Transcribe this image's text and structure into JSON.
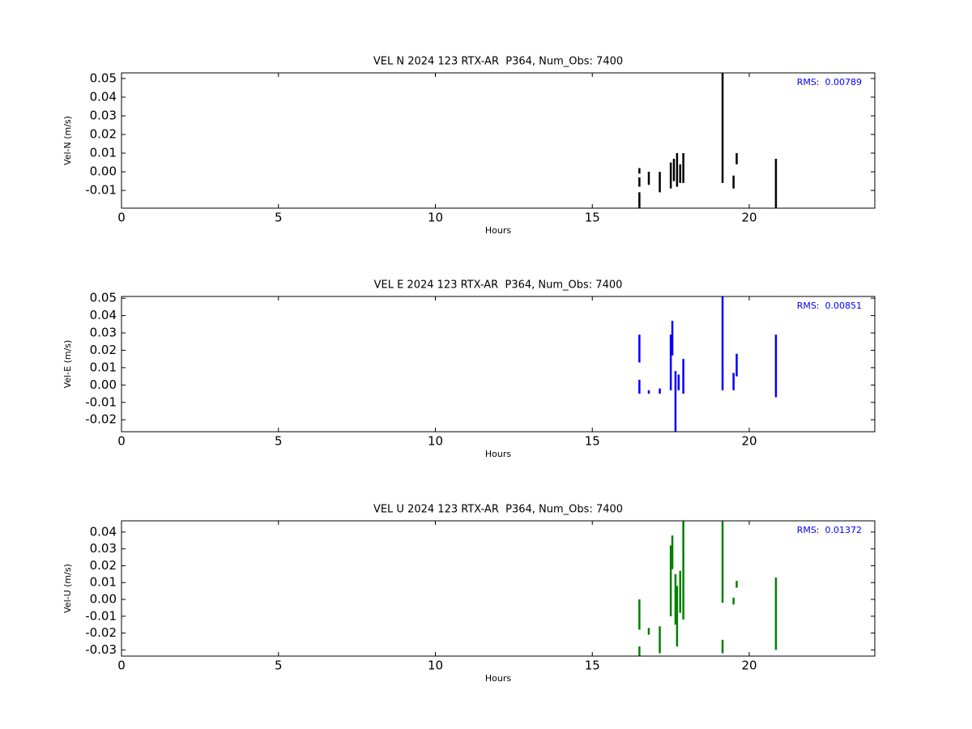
{
  "chart_data": [
    {
      "type": "line",
      "title": "VEL N 2024 123 RTX-AR  P364, Num_Obs: 7400",
      "xlabel": "Hours",
      "ylabel": "Vel-N (m/s)",
      "annotation": "RMS:  0.00789",
      "color": "#000000",
      "x": [
        16.5,
        16.5,
        null,
        16.5,
        16.5,
        null,
        16.5,
        16.5,
        null,
        16.8,
        16.8,
        null,
        17.15,
        17.15,
        null,
        17.5,
        17.5,
        null,
        17.6,
        17.6,
        null,
        17.7,
        17.7,
        null,
        17.8,
        17.8,
        null,
        17.9,
        17.9,
        null,
        19.15,
        19.15,
        null,
        19.5,
        19.5,
        null,
        19.6,
        19.6,
        null,
        20.85,
        20.85
      ],
      "values": [
        -0.0195,
        -0.011,
        null,
        -0.008,
        -0.003,
        null,
        -0.001,
        0.002,
        null,
        -0.007,
        0.0,
        null,
        -0.011,
        0.0,
        null,
        -0.009,
        0.005,
        null,
        -0.005,
        0.007,
        null,
        -0.008,
        0.01,
        null,
        -0.006,
        0.004,
        null,
        -0.006,
        0.01,
        null,
        -0.006,
        0.053,
        null,
        -0.009,
        -0.002,
        null,
        0.004,
        0.01,
        null,
        -0.0195,
        0.007
      ],
      "xlim": [
        0,
        24
      ],
      "xticks": [
        0,
        5,
        10,
        15,
        20
      ],
      "ylim": [
        -0.0195,
        0.053
      ],
      "yticks": [
        -0.01,
        {
          "value": 0,
          "label": "0.00"
        },
        0.01,
        0.02,
        0.03,
        0.04,
        0.05
      ]
    },
    {
      "type": "line",
      "title": "VEL E 2024 123 RTX-AR  P364, Num_Obs: 7400",
      "xlabel": "Hours",
      "ylabel": "Vel-E (m/s)",
      "annotation": "RMS:  0.00851",
      "color": "#0000ff",
      "x": [
        16.5,
        16.5,
        null,
        16.5,
        16.5,
        null,
        16.8,
        16.8,
        null,
        17.15,
        17.15,
        null,
        17.5,
        17.5,
        null,
        17.55,
        17.55,
        null,
        17.65,
        17.65,
        null,
        17.75,
        17.75,
        null,
        17.9,
        17.9,
        null,
        19.15,
        19.15,
        null,
        19.5,
        19.5,
        null,
        19.6,
        19.6,
        null,
        20.85,
        20.85
      ],
      "values": [
        0.013,
        0.029,
        null,
        -0.005,
        0.003,
        null,
        -0.005,
        -0.003,
        null,
        -0.005,
        -0.002,
        null,
        -0.003,
        0.029,
        null,
        0.017,
        0.037,
        null,
        -0.0269,
        0.008,
        null,
        -0.003,
        0.006,
        null,
        -0.005,
        0.015,
        null,
        -0.003,
        0.051,
        null,
        -0.003,
        0.007,
        null,
        0.005,
        0.018,
        null,
        -0.007,
        0.029
      ],
      "xlim": [
        0,
        24
      ],
      "xticks": [
        0,
        5,
        10,
        15,
        20
      ],
      "ylim": [
        -0.0269,
        0.051
      ],
      "yticks": [
        -0.02,
        -0.01,
        {
          "value": 0,
          "label": "0.00"
        },
        0.01,
        0.02,
        0.03,
        0.04,
        0.05
      ]
    },
    {
      "type": "line",
      "title": "VEL U 2024 123 RTX-AR  P364, Num_Obs: 7400",
      "xlabel": "Hours",
      "ylabel": "Vel-U (m/s)",
      "annotation": "RMS:  0.01372",
      "color": "#008000",
      "x": [
        16.5,
        16.5,
        null,
        16.5,
        16.5,
        null,
        16.8,
        16.8,
        null,
        17.15,
        17.15,
        null,
        17.5,
        17.5,
        null,
        17.55,
        17.55,
        null,
        17.65,
        17.65,
        null,
        17.7,
        17.7,
        null,
        17.8,
        17.8,
        null,
        17.9,
        17.9,
        null,
        19.15,
        19.15,
        null,
        19.15,
        19.15,
        null,
        19.5,
        19.5,
        null,
        19.6,
        19.6,
        null,
        20.85,
        20.85
      ],
      "values": [
        -0.018,
        0.0,
        null,
        -0.0337,
        -0.028,
        null,
        -0.021,
        -0.017,
        null,
        -0.032,
        -0.016,
        null,
        -0.01,
        0.032,
        null,
        0.018,
        0.038,
        null,
        -0.015,
        0.015,
        null,
        -0.028,
        0.008,
        null,
        -0.008,
        0.017,
        null,
        -0.012,
        0.0467,
        null,
        -0.002,
        0.0467,
        null,
        -0.032,
        -0.024,
        null,
        -0.003,
        0.001,
        null,
        0.007,
        0.011,
        null,
        -0.03,
        0.013
      ],
      "xlim": [
        0,
        24
      ],
      "xticks": [
        0,
        5,
        10,
        15,
        20
      ],
      "ylim": [
        -0.0337,
        0.0467
      ],
      "yticks": [
        -0.03,
        -0.02,
        -0.01,
        {
          "value": 0,
          "label": "0.00"
        },
        0.01,
        0.02,
        0.03,
        0.04
      ]
    }
  ]
}
